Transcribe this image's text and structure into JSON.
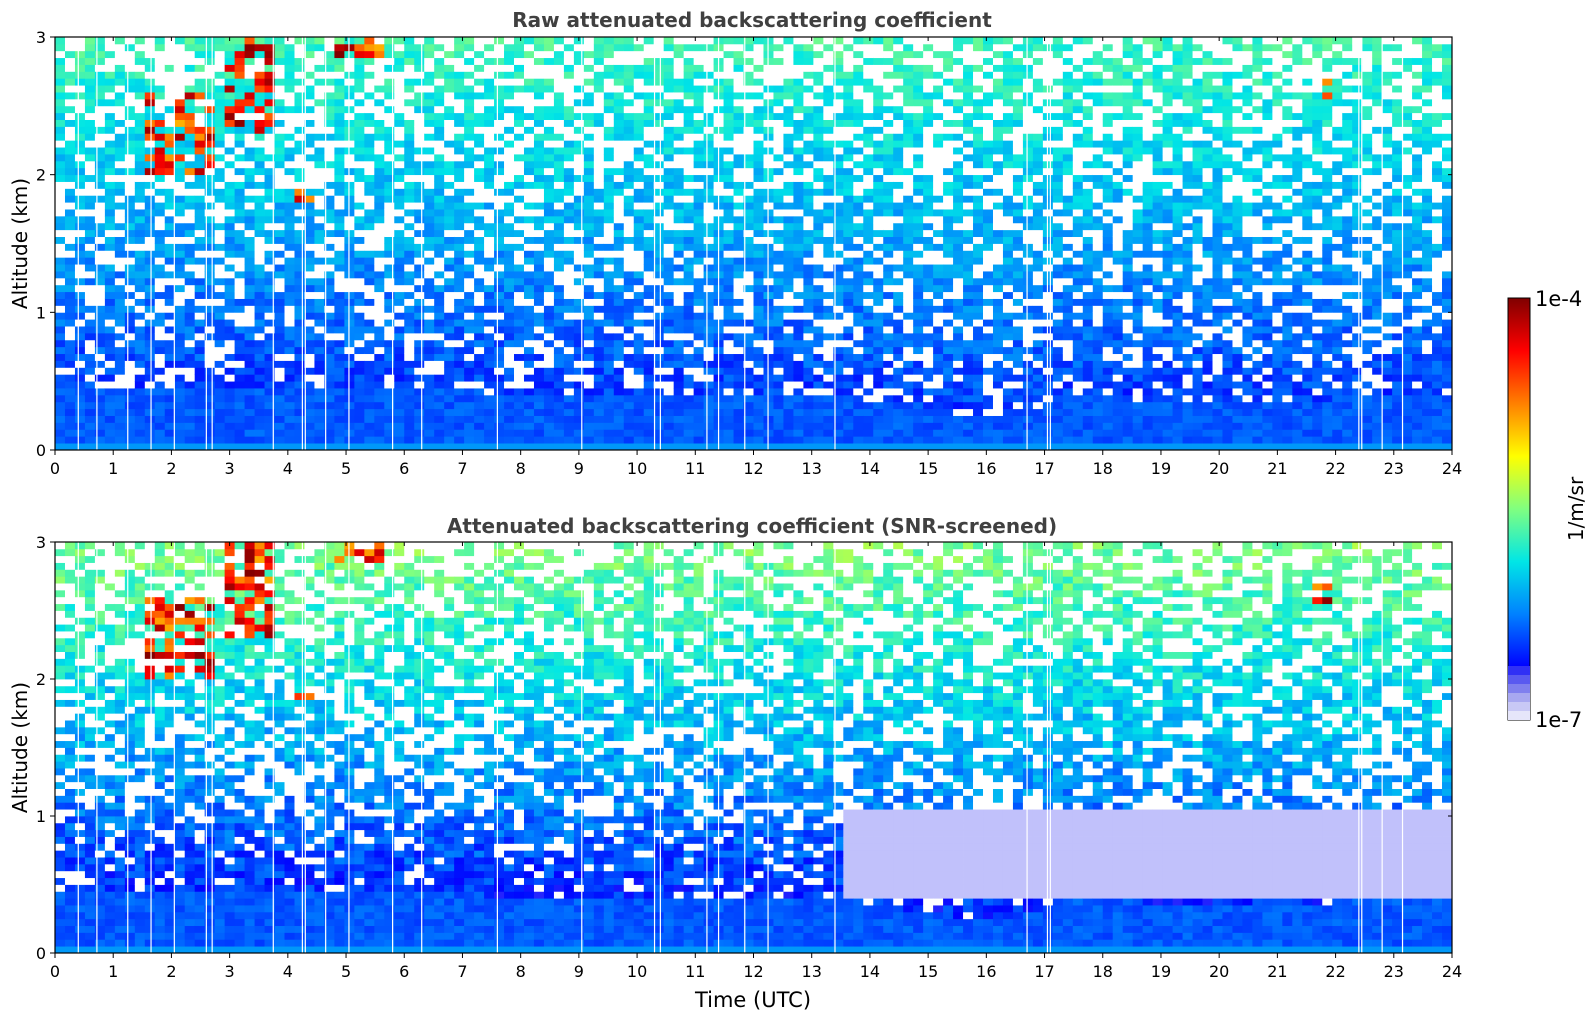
{
  "chart_data": [
    {
      "type": "heatmap",
      "title": "Raw attenuated backscattering coefficient",
      "ylabel": "Altitude (km)",
      "xlabel": "",
      "xlim": [
        0,
        24
      ],
      "ylim": [
        0,
        3
      ],
      "xticks": [
        "0",
        "1",
        "2",
        "3",
        "4",
        "5",
        "6",
        "7",
        "8",
        "9",
        "10",
        "11",
        "12",
        "13",
        "14",
        "15",
        "16",
        "17",
        "18",
        "19",
        "20",
        "21",
        "22",
        "23",
        "24"
      ],
      "yticks": [
        "0",
        "1",
        "2",
        "3"
      ],
      "screening": "raw",
      "features": {
        "surface_layer_top_km": 0.3,
        "boundary_layer_top_km": [
          {
            "t": 0,
            "h": 0.45
          },
          {
            "t": 4,
            "h": 0.45
          },
          {
            "t": 8,
            "h": 0.42
          },
          {
            "t": 12,
            "h": 0.4
          },
          {
            "t": 13.5,
            "h": 0.4
          },
          {
            "t": 15,
            "h": 0.3
          },
          {
            "t": 16.5,
            "h": 0.22
          },
          {
            "t": 17.2,
            "h": 0.4
          },
          {
            "t": 20,
            "h": 0.35
          },
          {
            "t": 24,
            "h": 0.4
          }
        ],
        "cloud_patches": [
          {
            "t": [
              1.6,
              2.8
            ],
            "h": [
              2.0,
              2.6
            ]
          },
          {
            "t": [
              2.9,
              3.8
            ],
            "h": [
              2.3,
              3.0
            ]
          },
          {
            "t": [
              4.8,
              5.6
            ],
            "h": [
              2.85,
              3.0
            ]
          },
          {
            "t": [
              4.1,
              4.5
            ],
            "h": [
              1.8,
              1.9
            ]
          },
          {
            "t": [
              21.6,
              21.9
            ],
            "h": [
              2.55,
              2.7
            ]
          }
        ],
        "gap_times_utc": [
          0.4,
          0.72,
          1.25,
          1.65,
          2.05,
          2.6,
          2.7,
          3.75,
          4.25,
          4.3,
          4.65,
          5.05,
          5.8,
          6.3,
          7.6,
          9.05,
          10.3,
          10.4,
          11.2,
          11.4,
          11.85,
          12.25,
          13.4,
          16.7,
          17.05,
          17.1,
          22.4,
          22.45,
          22.8,
          23.15
        ]
      }
    },
    {
      "type": "heatmap",
      "title": "Attenuated backscattering coefficient (SNR-screened)",
      "ylabel": "Altitude (km)",
      "xlabel": "Time (UTC)",
      "xlim": [
        0,
        24
      ],
      "ylim": [
        0,
        3
      ],
      "xticks": [
        "0",
        "1",
        "2",
        "3",
        "4",
        "5",
        "6",
        "7",
        "8",
        "9",
        "10",
        "11",
        "12",
        "13",
        "14",
        "15",
        "16",
        "17",
        "18",
        "19",
        "20",
        "21",
        "22",
        "23",
        "24"
      ],
      "yticks": [
        "0",
        "1",
        "2",
        "3"
      ],
      "screening": "snr",
      "features": {
        "surface_layer_top_km": 0.3,
        "boundary_layer_top_km": [
          {
            "t": 0,
            "h": 0.45
          },
          {
            "t": 4,
            "h": 0.45
          },
          {
            "t": 8,
            "h": 0.42
          },
          {
            "t": 12,
            "h": 0.4
          },
          {
            "t": 13.5,
            "h": 0.4
          },
          {
            "t": 15,
            "h": 0.3
          },
          {
            "t": 16.5,
            "h": 0.22
          },
          {
            "t": 17.2,
            "h": 0.4
          },
          {
            "t": 20,
            "h": 0.35
          },
          {
            "t": 24,
            "h": 0.4
          }
        ],
        "clear_region": {
          "t": [
            13.5,
            24
          ],
          "h": [
            0.4,
            1.05
          ]
        },
        "cloud_patches": [
          {
            "t": [
              1.6,
              2.8
            ],
            "h": [
              2.0,
              2.6
            ]
          },
          {
            "t": [
              2.9,
              3.8
            ],
            "h": [
              2.3,
              3.0
            ]
          },
          {
            "t": [
              4.8,
              5.6
            ],
            "h": [
              2.85,
              3.0
            ]
          },
          {
            "t": [
              4.1,
              4.5
            ],
            "h": [
              1.8,
              1.9
            ]
          },
          {
            "t": [
              21.6,
              21.9
            ],
            "h": [
              2.55,
              2.7
            ]
          }
        ],
        "gap_times_utc": [
          0.4,
          0.72,
          1.25,
          1.65,
          2.05,
          2.6,
          2.7,
          3.75,
          4.25,
          4.3,
          4.65,
          5.05,
          5.8,
          6.3,
          7.6,
          9.05,
          10.3,
          10.4,
          11.2,
          11.4,
          11.85,
          12.25,
          13.4,
          16.7,
          17.05,
          17.1,
          22.4,
          22.45,
          22.8,
          23.15
        ]
      }
    }
  ],
  "colorbar": {
    "label": "1/m/sr",
    "max_label": "1e-4",
    "min_label": "1e-7",
    "range": [
      1e-07,
      0.0001
    ],
    "scale": "log",
    "colormap": "jet",
    "stops": [
      "#e6e6fa",
      "#0000ff",
      "#0080ff",
      "#00e6e6",
      "#80ff80",
      "#ffff00",
      "#ff8000",
      "#ff0000",
      "#800000"
    ]
  }
}
